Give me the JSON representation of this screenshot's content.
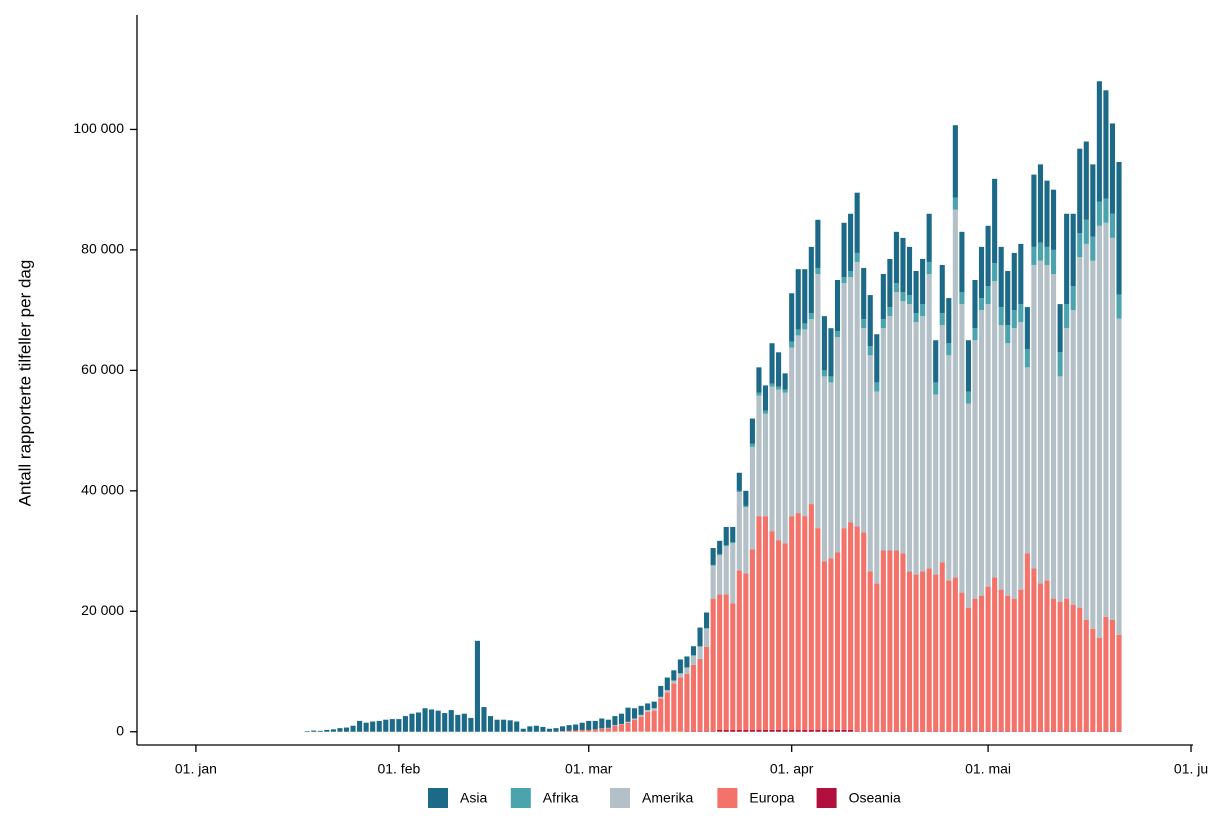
{
  "chart_data": {
    "type": "stacked-bar",
    "y_label": "Antall rapporterte tilfeller per dag",
    "x": [
      17,
      18,
      19,
      20,
      21,
      22,
      23,
      24,
      25,
      26,
      27,
      28,
      29,
      30,
      31,
      32,
      33,
      34,
      35,
      36,
      37,
      38,
      39,
      40,
      41,
      42,
      43,
      44,
      45,
      46,
      47,
      48,
      49,
      50,
      51,
      52,
      53,
      54,
      55,
      56,
      57,
      58,
      59,
      60,
      61,
      62,
      63,
      64,
      65,
      66,
      67,
      68,
      69,
      70,
      71,
      72,
      73,
      74,
      75,
      76,
      77,
      78,
      79,
      80,
      81,
      82,
      83,
      84,
      85,
      86,
      87,
      88,
      89,
      90,
      91,
      92,
      93,
      94,
      95,
      96,
      97,
      98,
      99,
      100,
      101,
      102,
      103,
      104,
      105,
      106,
      107,
      108,
      109,
      110,
      111,
      112,
      113,
      114,
      115,
      116,
      117,
      118,
      119,
      120,
      121,
      122,
      123,
      124,
      125,
      126,
      127,
      128,
      129,
      130,
      131,
      132,
      133,
      134,
      135,
      136,
      137,
      138,
      139,
      140,
      141
    ],
    "series": [
      {
        "name": "Asia",
        "color": "#1c6a88",
        "values": [
          100,
          200,
          150,
          300,
          400,
          600,
          700,
          1000,
          1800,
          1500,
          1700,
          1800,
          2000,
          2100,
          2100,
          2600,
          3000,
          3200,
          3900,
          3700,
          3500,
          3100,
          3600,
          2800,
          3000,
          2300,
          15100,
          4100,
          2600,
          2000,
          2000,
          1900,
          1700,
          500,
          900,
          1000,
          800,
          500,
          600,
          800,
          950,
          1000,
          1200,
          1500,
          1400,
          1650,
          1350,
          1500,
          1700,
          2350,
          1700,
          1500,
          1100,
          1100,
          1800,
          2100,
          1700,
          2300,
          1800,
          1500,
          3100,
          2600,
          2800,
          2200,
          3000,
          2500,
          3000,
          2500,
          4200,
          4200,
          4200,
          6700,
          5700,
          2700,
          8000,
          10000,
          9000,
          11000,
          8000,
          9000,
          8000,
          8500,
          9000,
          9500,
          10000,
          8500,
          8500,
          8000,
          7500,
          8000,
          8500,
          9000,
          8000,
          7000,
          7500,
          8000,
          7000,
          8000,
          7500,
          12000,
          10000,
          8500,
          8000,
          8500,
          10000,
          14000,
          10000,
          9000,
          9500,
          10000,
          7000,
          12000,
          13000,
          11000,
          10000,
          8000,
          15000,
          12000,
          14000,
          13000,
          12000,
          20000,
          18000,
          15000,
          22000
        ]
      },
      {
        "name": "Afrika",
        "color": "#4ba3ae",
        "values": [
          0,
          0,
          0,
          0,
          0,
          0,
          0,
          0,
          0,
          0,
          0,
          0,
          0,
          0,
          0,
          0,
          0,
          0,
          0,
          0,
          0,
          0,
          0,
          0,
          0,
          0,
          0,
          0,
          0,
          0,
          0,
          0,
          0,
          0,
          0,
          0,
          0,
          0,
          0,
          0,
          0,
          0,
          0,
          0,
          0,
          0,
          0,
          0,
          0,
          0,
          0,
          0,
          0,
          0,
          0,
          0,
          0,
          0,
          100,
          100,
          100,
          100,
          100,
          200,
          200,
          200,
          200,
          200,
          500,
          500,
          500,
          500,
          500,
          500,
          1000,
          1000,
          1000,
          1000,
          1000,
          1000,
          1000,
          1000,
          1000,
          1000,
          1500,
          1500,
          1500,
          1500,
          1500,
          1500,
          1500,
          1500,
          1500,
          1500,
          2000,
          2000,
          2000,
          2000,
          2000,
          2000,
          2000,
          2000,
          2000,
          2000,
          3000,
          3000,
          3000,
          3000,
          3000,
          3000,
          3000,
          3000,
          3000,
          3000,
          4000,
          4000,
          4000,
          4000,
          4000,
          4000,
          4000,
          4000,
          4000,
          4000,
          4000
        ]
      },
      {
        "name": "Amerika",
        "color": "#b4c0c7",
        "values": [
          0,
          0,
          0,
          0,
          0,
          0,
          0,
          0,
          0,
          0,
          0,
          0,
          0,
          0,
          0,
          0,
          0,
          0,
          0,
          0,
          0,
          0,
          0,
          0,
          0,
          0,
          0,
          0,
          0,
          0,
          0,
          0,
          0,
          0,
          0,
          0,
          0,
          0,
          0,
          0,
          0,
          0,
          0,
          0,
          0,
          50,
          50,
          100,
          100,
          150,
          200,
          300,
          300,
          400,
          300,
          400,
          500,
          700,
          1000,
          1500,
          2000,
          3000,
          5500,
          6500,
          8000,
          10000,
          13000,
          11000,
          17000,
          20000,
          17000,
          24000,
          25000,
          25000,
          28000,
          29500,
          31000,
          30700,
          42200,
          30700,
          29200,
          35700,
          40700,
          40700,
          43900,
          33900,
          35900,
          31900,
          36900,
          38900,
          42900,
          41900,
          44400,
          41900,
          42400,
          48900,
          29900,
          39400,
          37400,
          61100,
          47900,
          33900,
          42900,
          47400,
          46900,
          49200,
          43900,
          41900,
          44900,
          44400,
          30900,
          50400,
          53600,
          52400,
          53900,
          37400,
          44900,
          48900,
          58200,
          62400,
          61100,
          68400,
          65400,
          63400,
          52500
        ]
      },
      {
        "name": "Europa",
        "color": "#f3736a",
        "values": [
          0,
          0,
          0,
          0,
          0,
          0,
          0,
          0,
          0,
          0,
          0,
          0,
          0,
          0,
          0,
          0,
          0,
          0,
          0,
          0,
          0,
          0,
          0,
          0,
          0,
          0,
          0,
          0,
          0,
          0,
          0,
          0,
          0,
          0,
          0,
          0,
          0,
          0,
          0,
          100,
          150,
          200,
          300,
          300,
          400,
          500,
          600,
          1000,
          1200,
          1500,
          2000,
          2500,
          3300,
          3500,
          5500,
          6500,
          8000,
          9000,
          9500,
          11000,
          12000,
          14000,
          22000,
          22500,
          22500,
          21000,
          26500,
          26000,
          30000,
          35500,
          35500,
          33000,
          31500,
          31000,
          35500,
          36000,
          35500,
          37500,
          33500,
          28000,
          28500,
          29500,
          33500,
          34500,
          34000,
          33000,
          26500,
          24500,
          30000,
          30000,
          30000,
          29500,
          26500,
          26000,
          26500,
          27000,
          26000,
          28000,
          25000,
          25500,
          23000,
          20500,
          22000,
          22500,
          24000,
          25500,
          23500,
          22500,
          22000,
          23500,
          29500,
          27000,
          24500,
          25000,
          22000,
          21500,
          22000,
          21000,
          20500,
          18500,
          17000,
          15500,
          19000,
          18500,
          16000
        ]
      },
      {
        "name": "Oseania",
        "color": "#b1103f",
        "values": [
          0,
          0,
          0,
          0,
          0,
          0,
          0,
          0,
          0,
          0,
          0,
          0,
          0,
          0,
          0,
          0,
          0,
          0,
          0,
          0,
          0,
          0,
          0,
          0,
          0,
          0,
          0,
          0,
          0,
          0,
          0,
          0,
          0,
          0,
          0,
          0,
          0,
          0,
          0,
          0,
          0,
          0,
          0,
          0,
          0,
          0,
          0,
          0,
          0,
          0,
          0,
          0,
          0,
          0,
          0,
          0,
          0,
          0,
          100,
          100,
          100,
          100,
          100,
          300,
          300,
          300,
          300,
          300,
          300,
          300,
          300,
          300,
          300,
          300,
          300,
          300,
          300,
          300,
          300,
          300,
          300,
          300,
          300,
          300,
          100,
          100,
          100,
          100,
          100,
          100,
          100,
          100,
          100,
          100,
          100,
          100,
          100,
          100,
          100,
          100,
          100,
          100,
          100,
          100,
          100,
          100,
          100,
          100,
          100,
          100,
          100,
          100,
          100,
          100,
          100,
          100,
          100,
          100,
          100,
          100,
          100,
          100,
          100,
          100,
          100
        ]
      }
    ],
    "xlim": [
      -9,
      152.3
    ],
    "xticks": [
      {
        "value": 0,
        "label": "01. jan"
      },
      {
        "value": 31,
        "label": "01. feb"
      },
      {
        "value": 60,
        "label": "01. mar"
      },
      {
        "value": 91,
        "label": "01. apr"
      },
      {
        "value": 121,
        "label": "01. mai"
      },
      {
        "value": 152,
        "label": "01. ju"
      }
    ],
    "ylim": [
      -2200,
      119000
    ],
    "yticks": [
      0,
      {
        "value": 20000,
        "label": "20 000"
      },
      {
        "value": 40000,
        "label": "40 000"
      },
      {
        "value": 60000,
        "label": "60 000"
      },
      {
        "value": 80000,
        "label": "80 000"
      },
      {
        "value": 100000,
        "label": "100 000"
      }
    ],
    "legend": "bottom"
  }
}
